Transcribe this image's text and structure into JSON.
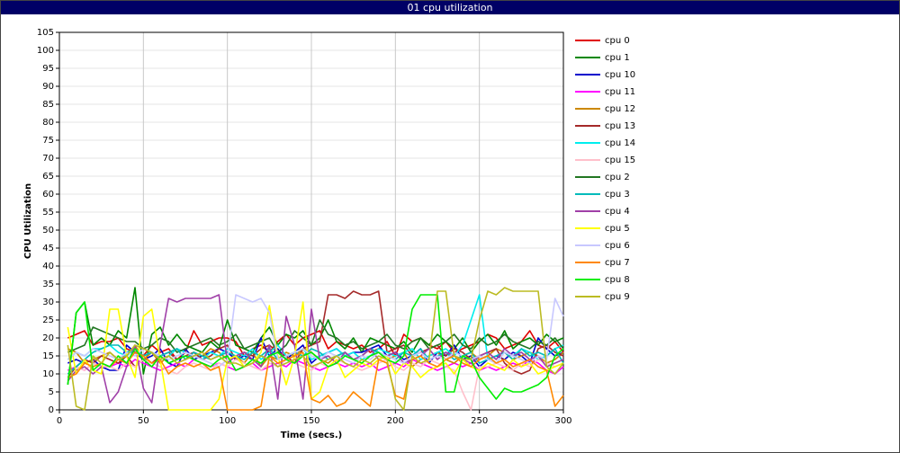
{
  "chart_data": {
    "type": "line",
    "title": "01 cpu utilization",
    "x_label": "Time (secs.)",
    "y_label": "CPU Utilization",
    "x": [
      5,
      10,
      15,
      20,
      25,
      30,
      35,
      40,
      45,
      50,
      55,
      60,
      65,
      70,
      75,
      80,
      85,
      90,
      95,
      100,
      105,
      110,
      115,
      120,
      125,
      130,
      135,
      140,
      145,
      150,
      155,
      160,
      165,
      170,
      175,
      180,
      185,
      190,
      195,
      200,
      205,
      210,
      215,
      220,
      225,
      230,
      235,
      240,
      245,
      250,
      255,
      260,
      265,
      270,
      275,
      280,
      285,
      290,
      295,
      300
    ],
    "xlim": [
      0,
      300
    ],
    "xticks": [
      0,
      50,
      100,
      150,
      200,
      250,
      300
    ],
    "ylim": [
      0,
      105
    ],
    "yticks": [
      0,
      5,
      10,
      15,
      20,
      25,
      30,
      35,
      40,
      45,
      50,
      55,
      60,
      65,
      70,
      75,
      80,
      85,
      90,
      95,
      100,
      105
    ],
    "grid": true,
    "legend": "right",
    "series": [
      {
        "name": "cpu 0",
        "color": "#e00000",
        "values": [
          20,
          21,
          22,
          18,
          19,
          19,
          20,
          17,
          16,
          15,
          18,
          16,
          17,
          14,
          16,
          22,
          18,
          19,
          20,
          20,
          19,
          15,
          17,
          18,
          16,
          19,
          21,
          18,
          20,
          21,
          22,
          17,
          19,
          18,
          17,
          18,
          16,
          17,
          19,
          15,
          21,
          19,
          20,
          18,
          17,
          19,
          16,
          17,
          18,
          19,
          21,
          20,
          17,
          18,
          19,
          22,
          18,
          17,
          19,
          16
        ]
      },
      {
        "name": "cpu 1",
        "color": "#008800",
        "values": [
          7,
          27,
          30,
          18,
          20,
          18,
          22,
          20,
          34,
          10,
          21,
          23,
          18,
          21,
          18,
          17,
          16,
          19,
          17,
          25,
          18,
          17,
          16,
          20,
          23,
          18,
          21,
          20,
          22,
          18,
          20,
          25,
          19,
          17,
          20,
          16,
          20,
          19,
          18,
          17,
          19,
          16,
          20,
          18,
          21,
          19,
          17,
          20,
          16,
          19,
          21,
          18,
          22,
          17,
          19,
          20,
          18,
          21,
          19,
          20
        ]
      },
      {
        "name": "cpu 10",
        "color": "#0000cc",
        "values": [
          13,
          14,
          13,
          14,
          12,
          11,
          11,
          18,
          16,
          14,
          15,
          17,
          13,
          12,
          17,
          14,
          15,
          16,
          17,
          16,
          14,
          15,
          14,
          20,
          15,
          17,
          14,
          16,
          18,
          13,
          15,
          16,
          17,
          15,
          16,
          16,
          17,
          18,
          15,
          16,
          14,
          15,
          17,
          13,
          16,
          15,
          18,
          14,
          15,
          12,
          14,
          15,
          14,
          16,
          15,
          13,
          20,
          17,
          15,
          16
        ]
      },
      {
        "name": "cpu 11",
        "color": "#ff00ff",
        "values": [
          11,
          12,
          11,
          13,
          12,
          12,
          13,
          12,
          14,
          13,
          12,
          11,
          12,
          13,
          12,
          14,
          13,
          12,
          13,
          12,
          11,
          12,
          13,
          11,
          12,
          13,
          12,
          14,
          13,
          12,
          11,
          12,
          13,
          12,
          13,
          12,
          13,
          11,
          12,
          13,
          12,
          14,
          13,
          12,
          11,
          12,
          13,
          12,
          13,
          11,
          12,
          11,
          12,
          13,
          12,
          14,
          13,
          11,
          10,
          12
        ]
      },
      {
        "name": "cpu 12",
        "color": "#cc8800",
        "values": [
          17,
          16,
          13,
          14,
          15,
          16,
          14,
          15,
          18,
          14,
          16,
          13,
          15,
          17,
          14,
          16,
          15,
          17,
          16,
          14,
          15,
          13,
          16,
          12,
          15,
          14,
          16,
          15,
          17,
          16,
          14,
          13,
          15,
          16,
          14,
          15,
          17,
          16,
          14,
          15,
          16,
          12,
          14,
          15,
          16,
          14,
          13,
          15,
          16,
          14,
          15,
          17,
          16,
          14,
          15,
          16,
          15,
          13,
          14,
          16
        ]
      },
      {
        "name": "cpu 13",
        "color": "#a52a2a",
        "values": [
          9,
          12,
          14,
          13,
          15,
          14,
          13,
          15,
          12,
          14,
          13,
          15,
          16,
          14,
          15,
          16,
          14,
          15,
          17,
          18,
          14,
          16,
          15,
          17,
          18,
          16,
          15,
          13,
          17,
          18,
          19,
          32,
          32,
          31,
          33,
          32,
          32,
          33,
          16,
          17,
          18,
          15,
          16,
          17,
          18,
          15,
          17,
          16,
          14,
          15,
          16,
          17,
          13,
          11,
          10,
          11,
          17,
          18,
          16,
          15
        ]
      },
      {
        "name": "cpu 14",
        "color": "#00eeee",
        "values": [
          14,
          16,
          15,
          17,
          17,
          18,
          16,
          15,
          17,
          15,
          16,
          14,
          15,
          17,
          16,
          15,
          14,
          16,
          15,
          17,
          16,
          15,
          17,
          14,
          16,
          18,
          15,
          16,
          17,
          14,
          15,
          16,
          17,
          15,
          16,
          14,
          15,
          17,
          16,
          15,
          16,
          17,
          14,
          15,
          16,
          17,
          15,
          18,
          25,
          32,
          14,
          15,
          16,
          15,
          17,
          16,
          14,
          15,
          17,
          18
        ]
      },
      {
        "name": "cpu 15",
        "color": "#ffc0cb",
        "values": [
          10,
          12,
          11,
          13,
          12,
          12,
          11,
          13,
          12,
          14,
          13,
          12,
          11,
          10,
          12,
          13,
          12,
          11,
          13,
          12,
          14,
          13,
          12,
          11,
          13,
          12,
          14,
          13,
          12,
          11,
          13,
          12,
          14,
          13,
          12,
          11,
          12,
          13,
          14,
          12,
          11,
          13,
          12,
          14,
          13,
          12,
          11,
          5,
          0,
          12,
          12,
          13,
          12,
          11,
          13,
          12,
          14,
          13,
          12,
          13
        ]
      },
      {
        "name": "cpu 2",
        "color": "#227722",
        "values": [
          16,
          17,
          18,
          23,
          22,
          21,
          20,
          19,
          19,
          17,
          18,
          20,
          19,
          16,
          17,
          18,
          19,
          20,
          18,
          19,
          21,
          17,
          18,
          19,
          20,
          16,
          18,
          22,
          20,
          18,
          25,
          21,
          20,
          18,
          19,
          17,
          18,
          19,
          21,
          18,
          17,
          19,
          20,
          17,
          18,
          19,
          21,
          18,
          17,
          20,
          18,
          19,
          21,
          19,
          18,
          17,
          19,
          18,
          20,
          17
        ]
      },
      {
        "name": "cpu 3",
        "color": "#00bbbb",
        "values": [
          10,
          12,
          14,
          16,
          17,
          18,
          18,
          16,
          17,
          15,
          16,
          15,
          16,
          17,
          14,
          16,
          15,
          14,
          15,
          16,
          15,
          14,
          16,
          15,
          17,
          14,
          15,
          16,
          15,
          17,
          16,
          14,
          15,
          16,
          14,
          15,
          17,
          16,
          15,
          14,
          16,
          15,
          17,
          14,
          15,
          16,
          14,
          15,
          16,
          13,
          14,
          15,
          16,
          14,
          17,
          15,
          16,
          15,
          17,
          13
        ]
      },
      {
        "name": "cpu 4",
        "color": "#a040a8",
        "values": [
          8,
          11,
          12,
          10,
          12,
          2,
          5,
          12,
          18,
          6,
          2,
          18,
          31,
          30,
          31,
          31,
          31,
          31,
          32,
          13,
          15,
          16,
          14,
          12,
          18,
          3,
          26,
          18,
          3,
          28,
          14,
          15,
          13,
          16,
          14,
          15,
          17,
          14,
          15,
          16,
          13,
          14,
          15,
          17,
          14,
          16,
          15,
          14,
          13,
          15,
          16,
          14,
          17,
          15,
          16,
          14,
          15,
          12,
          13,
          14
        ]
      },
      {
        "name": "cpu 5",
        "color": "#ffff00",
        "values": [
          23,
          10,
          14,
          11,
          10,
          28,
          28,
          15,
          9,
          26,
          28,
          14,
          0,
          0,
          0,
          0,
          0,
          0,
          3,
          14,
          15,
          12,
          13,
          16,
          29,
          15,
          7,
          15,
          30,
          3,
          5,
          12,
          14,
          9,
          11,
          13,
          12,
          14,
          15,
          10,
          13,
          12,
          9,
          11,
          12,
          13,
          10,
          14,
          12,
          11,
          13,
          12,
          11,
          14,
          12,
          13,
          10,
          11,
          12,
          13
        ]
      },
      {
        "name": "cpu 6",
        "color": "#c8c8ff",
        "values": [
          14,
          16,
          15,
          17,
          16,
          15,
          14,
          16,
          15,
          17,
          16,
          15,
          14,
          15,
          16,
          15,
          14,
          13,
          12,
          14,
          32,
          31,
          30,
          31,
          27,
          14,
          15,
          16,
          17,
          15,
          14,
          16,
          15,
          14,
          13,
          15,
          14,
          16,
          15,
          14,
          13,
          15,
          16,
          14,
          15,
          14,
          16,
          15,
          14,
          15,
          14,
          13,
          16,
          15,
          14,
          13,
          15,
          14,
          31,
          26
        ]
      },
      {
        "name": "cpu 7",
        "color": "#ff8800",
        "values": [
          9,
          10,
          13,
          12,
          13,
          12,
          14,
          13,
          16,
          15,
          13,
          14,
          10,
          12,
          13,
          12,
          13,
          11,
          12,
          0,
          0,
          0,
          0,
          1,
          15,
          13,
          14,
          15,
          16,
          3,
          2,
          4,
          1,
          2,
          5,
          3,
          1,
          14,
          13,
          4,
          3,
          14,
          15,
          13,
          12,
          14,
          15,
          13,
          12,
          14,
          15,
          13,
          14,
          12,
          13,
          14,
          12,
          11,
          1,
          4
        ]
      },
      {
        "name": "cpu 8",
        "color": "#00ee00",
        "values": [
          7,
          27,
          30,
          11,
          13,
          12,
          15,
          13,
          17,
          14,
          12,
          15,
          13,
          14,
          15,
          14,
          13,
          12,
          14,
          15,
          11,
          12,
          14,
          13,
          15,
          16,
          14,
          13,
          15,
          16,
          14,
          12,
          13,
          15,
          14,
          13,
          15,
          16,
          14,
          13,
          15,
          28,
          32,
          32,
          32,
          5,
          5,
          15,
          14,
          9,
          6,
          3,
          6,
          5,
          5,
          6,
          7,
          9,
          15,
          17
        ]
      },
      {
        "name": "cpu 9",
        "color": "#bbbb22",
        "values": [
          18,
          1,
          0,
          15,
          13,
          16,
          14,
          15,
          18,
          17,
          16,
          14,
          15,
          13,
          14,
          15,
          16,
          14,
          15,
          13,
          13,
          12,
          13,
          15,
          14,
          12,
          13,
          14,
          15,
          12,
          13,
          14,
          15,
          13,
          12,
          14,
          13,
          15,
          14,
          3,
          0,
          15,
          13,
          14,
          33,
          33,
          15,
          14,
          14,
          25,
          33,
          32,
          34,
          33,
          33,
          33,
          33,
          12,
          10,
          13
        ]
      }
    ]
  }
}
